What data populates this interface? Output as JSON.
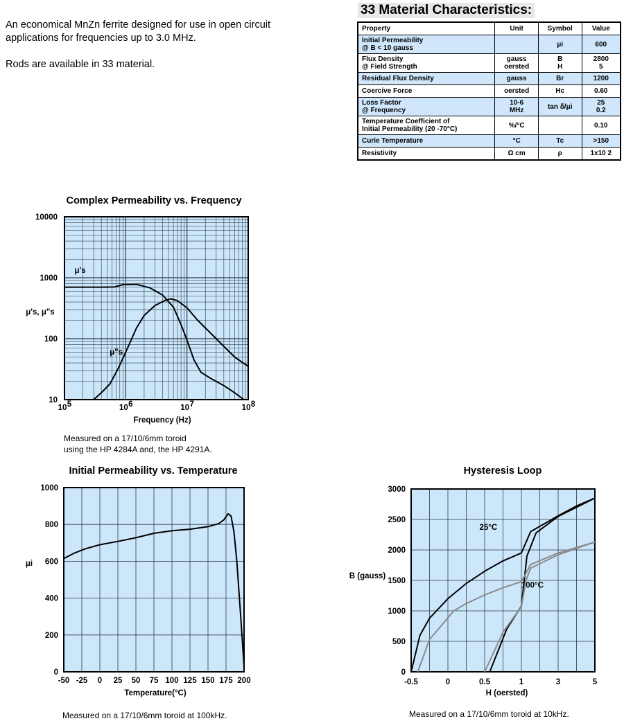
{
  "intro": {
    "p1": "An economical MnZn ferrite designed for use in open circuit applications for frequencies up to 3.0 MHz.",
    "p2": "Rods are available in 33 material."
  },
  "table": {
    "title": "33 Material Characteristics:",
    "headers": [
      "Property",
      "Unit",
      "Symbol",
      "Value"
    ],
    "rows": [
      {
        "property": [
          "Initial Permeability",
          "@ B < 10 gauss"
        ],
        "unit": [
          ""
        ],
        "symbol": [
          "μi"
        ],
        "value": [
          "600"
        ],
        "shaded": true
      },
      {
        "property": [
          "Flux Density",
          "@ Field Strength"
        ],
        "unit": [
          "gauss",
          "oersted"
        ],
        "symbol": [
          "B",
          "H"
        ],
        "value": [
          "2800",
          "5"
        ],
        "shaded": false
      },
      {
        "property": [
          "Residual Flux Density"
        ],
        "unit": [
          "gauss"
        ],
        "symbol": [
          "Br"
        ],
        "value": [
          "1200"
        ],
        "shaded": true
      },
      {
        "property": [
          "Coercive Force"
        ],
        "unit": [
          "oersted"
        ],
        "symbol": [
          "Hc"
        ],
        "value": [
          "0.60"
        ],
        "shaded": false
      },
      {
        "property": [
          "Loss Factor",
          "@ Frequency"
        ],
        "unit": [
          "10-6",
          "MHz"
        ],
        "symbol": [
          "tan δ/μi",
          ""
        ],
        "value": [
          "25",
          "0.2"
        ],
        "shaded": true
      },
      {
        "property": [
          "Temperature Coefficient of",
          "Initial Permeability (20 -70°C)"
        ],
        "unit": [
          "%/°C"
        ],
        "symbol": [
          ""
        ],
        "value": [
          "0.10"
        ],
        "shaded": false
      },
      {
        "property": [
          "Curie Temperature"
        ],
        "unit": [
          "°C"
        ],
        "symbol": [
          "Tc"
        ],
        "value": [
          ">150"
        ],
        "shaded": true
      },
      {
        "property": [
          "Resistivity"
        ],
        "unit": [
          "Ω cm"
        ],
        "symbol": [
          "ρ"
        ],
        "value": [
          "1x10 2"
        ],
        "shaded": false
      }
    ]
  },
  "colors": {
    "plot_bg": "#cce6fa",
    "grid": "#2a3a4a",
    "curve": "#000000",
    "curve_hot": "#8a8a8a"
  },
  "captions": {
    "perm_freq": [
      "Measured on a 17/10/6mm toroid",
      "using the HP 4284A and, the HP 4291A."
    ],
    "perm_temp": "Measured on a 17/10/6mm toroid at 100kHz.",
    "hyst": "Measured on a 17/10/6mm toroid at 10kHz."
  },
  "chart_data": [
    {
      "type": "line",
      "title": "Complex Permeability vs. Frequency",
      "xlabel": "Frequency (Hz)",
      "ylabel": "μ's, μ\"s",
      "xscale": "log",
      "yscale": "log",
      "xlim": [
        100000,
        100000000
      ],
      "ylim": [
        10,
        10000
      ],
      "xticks": [
        {
          "v": 100000,
          "b": "10",
          "e": "5"
        },
        {
          "v": 1000000,
          "b": "10",
          "e": "6"
        },
        {
          "v": 10000000,
          "b": "10",
          "e": "7"
        },
        {
          "v": 100000000,
          "b": "10",
          "e": "8"
        }
      ],
      "yticks": [
        {
          "v": 10,
          "l": "10"
        },
        {
          "v": 100,
          "l": "100"
        },
        {
          "v": 1000,
          "l": "1000"
        },
        {
          "v": 10000,
          "l": "10000"
        }
      ],
      "series": [
        {
          "name": "μ's",
          "label_at": [
            180000,
            1200
          ],
          "points": [
            [
              100000,
              700
            ],
            [
              400000,
              700
            ],
            [
              650000,
              705
            ],
            [
              900000,
              770
            ],
            [
              1500000,
              780
            ],
            [
              2500000,
              680
            ],
            [
              4000000,
              520
            ],
            [
              6000000,
              330
            ],
            [
              8000000,
              170
            ],
            [
              10000000,
              95
            ],
            [
              13000000,
              45
            ],
            [
              17000000,
              28
            ],
            [
              25000000,
              22
            ],
            [
              40000000,
              17
            ],
            [
              60000000,
              13
            ],
            [
              85000000,
              10
            ]
          ]
        },
        {
          "name": "μ\"s",
          "label_at": [
            700000,
            55
          ],
          "points": [
            [
              300000,
              10
            ],
            [
              400000,
              13
            ],
            [
              550000,
              18
            ],
            [
              750000,
              32
            ],
            [
              1000000,
              60
            ],
            [
              1500000,
              150
            ],
            [
              2000000,
              240
            ],
            [
              3000000,
              350
            ],
            [
              4500000,
              430
            ],
            [
              5500000,
              450
            ],
            [
              7000000,
              420
            ],
            [
              10000000,
              320
            ],
            [
              15000000,
              200
            ],
            [
              25000000,
              120
            ],
            [
              40000000,
              75
            ],
            [
              60000000,
              50
            ],
            [
              100000000,
              35
            ]
          ]
        }
      ]
    },
    {
      "type": "line",
      "title": "Initial Permeability vs. Temperature",
      "xlabel": "Temperature(°C)",
      "ylabel": "μi",
      "xlim": [
        -50,
        200
      ],
      "ylim": [
        0,
        1000
      ],
      "xticks": [
        -50,
        -25,
        0,
        25,
        50,
        75,
        100,
        125,
        150,
        175,
        200
      ],
      "yticks": [
        0,
        200,
        400,
        600,
        800,
        1000
      ],
      "series": [
        {
          "name": "μi",
          "points": [
            [
              -50,
              615
            ],
            [
              -35,
              645
            ],
            [
              -20,
              668
            ],
            [
              0,
              690
            ],
            [
              25,
              708
            ],
            [
              50,
              728
            ],
            [
              75,
              752
            ],
            [
              100,
              766
            ],
            [
              125,
              774
            ],
            [
              150,
              788
            ],
            [
              165,
              805
            ],
            [
              172,
              825
            ],
            [
              178,
              858
            ],
            [
              182,
              845
            ],
            [
              186,
              760
            ],
            [
              190,
              600
            ],
            [
              195,
              320
            ],
            [
              200,
              30
            ]
          ]
        }
      ]
    },
    {
      "type": "line",
      "title": "Hysteresis Loop",
      "xlabel": "H (oersted)",
      "ylabel": "B (gauss)",
      "xscale": "piecewise",
      "xlim": [
        -0.5,
        5
      ],
      "xticks": [
        -0.5,
        0,
        0.5,
        1,
        3,
        5
      ],
      "ylim": [
        0,
        3000
      ],
      "yticks": [
        0,
        500,
        1000,
        1500,
        2000,
        2500,
        3000
      ],
      "series": [
        {
          "name": "25°C",
          "label_at": [
            0.55,
            2330
          ],
          "points": [
            [
              -0.5,
              0
            ],
            [
              -0.38,
              600
            ],
            [
              -0.25,
              880
            ],
            [
              0,
              1200
            ],
            [
              0.25,
              1450
            ],
            [
              0.5,
              1650
            ],
            [
              0.75,
              1820
            ],
            [
              1,
              1950
            ],
            [
              1.5,
              2300
            ],
            [
              3,
              2560
            ],
            [
              4,
              2720
            ],
            [
              5,
              2850
            ]
          ]
        },
        {
          "name": "25°C-return",
          "points": [
            [
              0.57,
              0
            ],
            [
              0.8,
              700
            ],
            [
              1,
              1080
            ],
            [
              1.3,
              1900
            ],
            [
              1.8,
              2280
            ],
            [
              3,
              2550
            ],
            [
              5,
              2850
            ]
          ]
        },
        {
          "name": "100°C",
          "label_at": [
            1.6,
            1380
          ],
          "points": [
            [
              -0.41,
              0
            ],
            [
              -0.25,
              530
            ],
            [
              0.08,
              1000
            ],
            [
              0.25,
              1120
            ],
            [
              0.5,
              1260
            ],
            [
              0.75,
              1380
            ],
            [
              1,
              1480
            ],
            [
              1.5,
              1760
            ],
            [
              3,
              1950
            ],
            [
              5,
              2130
            ]
          ]
        },
        {
          "name": "100°C-return",
          "points": [
            [
              0.5,
              0
            ],
            [
              0.75,
              650
            ],
            [
              1,
              1070
            ],
            [
              1.25,
              1500
            ],
            [
              1.5,
              1700
            ],
            [
              3,
              1920
            ],
            [
              5,
              2130
            ]
          ]
        }
      ]
    }
  ]
}
